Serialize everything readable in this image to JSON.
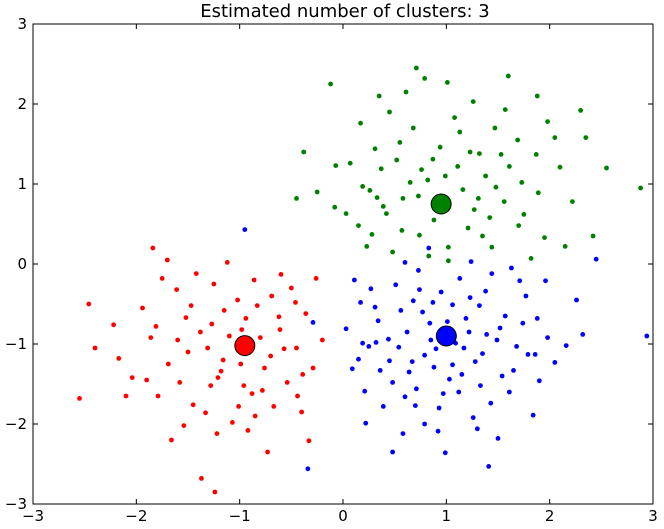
{
  "chart_data": {
    "type": "scatter",
    "title": "Estimated number of clusters: 3",
    "xlabel": "",
    "ylabel": "",
    "xlim": [
      -3,
      3
    ],
    "ylim": [
      -3,
      3
    ],
    "xticks": [
      -3,
      -2,
      -1,
      0,
      1,
      2,
      3
    ],
    "yticks": [
      -3,
      -2,
      -1,
      0,
      1,
      2,
      3
    ],
    "xtick_labels": [
      "−3",
      "−2",
      "−1",
      "0",
      "1",
      "2",
      "3"
    ],
    "ytick_labels": [
      "−3",
      "−2",
      "−1",
      "0",
      "1",
      "2",
      "3"
    ],
    "grid": false,
    "series": [
      {
        "color": "#0000ff",
        "center": [
          1.0,
          -0.9
        ],
        "points": [
          [
            0.32,
            -0.98
          ],
          [
            1.06,
            -0.51
          ],
          [
            0.84,
            -0.74
          ],
          [
            1.22,
            -0.85
          ],
          [
            0.79,
            -1.14
          ],
          [
            1.28,
            -1.22
          ],
          [
            0.56,
            -0.58
          ],
          [
            1.49,
            -0.95
          ],
          [
            0.97,
            -1.62
          ],
          [
            0.68,
            -0.46
          ],
          [
            1.32,
            -0.52
          ],
          [
            0.15,
            -1.19
          ],
          [
            0.48,
            -1.48
          ],
          [
            1.74,
            -0.74
          ],
          [
            1.15,
            -1.38
          ],
          [
            0.62,
            -0.85
          ],
          [
            0.95,
            -0.35
          ],
          [
            1.65,
            -1.33
          ],
          [
            0.31,
            -0.54
          ],
          [
            1.86,
            -1.13
          ],
          [
            0.7,
            -1.77
          ],
          [
            0.21,
            -1.59
          ],
          [
            1.43,
            -1.74
          ],
          [
            0.88,
            -1.29
          ],
          [
            1.09,
            -0.99
          ],
          [
            0.45,
            -1.21
          ],
          [
            1.57,
            -0.65
          ],
          [
            0.27,
            -0.31
          ],
          [
            1.13,
            -0.18
          ],
          [
            0.73,
            -0.08
          ],
          [
            1.98,
            -0.92
          ],
          [
            0.64,
            -1.35
          ],
          [
            1.38,
            -0.34
          ],
          [
            0.03,
            -0.81
          ],
          [
            0.58,
            -2.12
          ],
          [
            1.26,
            -1.92
          ],
          [
            0.92,
            -2.09
          ],
          [
            1.68,
            -1.03
          ],
          [
            1.9,
            -1.46
          ],
          [
            0.39,
            -1.78
          ],
          [
            1.5,
            -2.18
          ],
          [
            0.85,
            -0.95
          ],
          [
            1.03,
            -1.44
          ],
          [
            0.17,
            -0.48
          ],
          [
            1.77,
            -0.4
          ],
          [
            0.51,
            -0.26
          ],
          [
            2.16,
            -1.02
          ],
          [
            1.35,
            -1.12
          ],
          [
            0.22,
            -1.99
          ],
          [
            0.77,
            -0.6
          ],
          [
            1.19,
            -0.68
          ],
          [
            1.61,
            -1.6
          ],
          [
            0.99,
            -2.36
          ],
          [
            0.34,
            -0.71
          ],
          [
            1.44,
            -0.12
          ],
          [
            0.09,
            -1.31
          ],
          [
            0.6,
            0.02
          ],
          [
            0.83,
            0.2
          ],
          [
            1.71,
            -0.21
          ],
          [
            2.05,
            -1.23
          ],
          [
            2.32,
            -0.88
          ],
          [
            1.3,
            -2.06
          ],
          [
            0.44,
            -0.94
          ],
          [
            0.93,
            -1.8
          ],
          [
            1.12,
            -1.6
          ],
          [
            1.84,
            -1.89
          ],
          [
            0.11,
            -0.2
          ],
          [
            0.71,
            -1.56
          ],
          [
            1.54,
            -1.4
          ],
          [
            1.24,
            0.03
          ],
          [
            0.48,
            -2.35
          ],
          [
            1.01,
            -0.72
          ],
          [
            0.25,
            -1.03
          ],
          [
            1.88,
            -0.68
          ],
          [
            0.67,
            -1.22
          ],
          [
            1.39,
            -0.88
          ],
          [
            0.54,
            -1.04
          ],
          [
            0.79,
            -2.0
          ],
          [
            1.96,
            -0.21
          ],
          [
            2.26,
            -0.45
          ],
          [
            1.63,
            -0.05
          ],
          [
            2.45,
            0.06
          ],
          [
            2.94,
            -0.9
          ],
          [
            -0.34,
            -2.56
          ],
          [
            -0.95,
            0.43
          ],
          [
            -0.29,
            -0.73
          ],
          [
            1.41,
            -2.53
          ],
          [
            0.87,
            -0.48
          ],
          [
            1.17,
            -1.05
          ],
          [
            0.36,
            -1.33
          ],
          [
            1.52,
            -0.8
          ],
          [
            0.74,
            -0.32
          ],
          [
            1.06,
            -1.26
          ],
          [
            0.6,
            -1.66
          ],
          [
            1.33,
            -1.52
          ],
          [
            0.19,
            -0.99
          ],
          [
            1.79,
            -1.13
          ],
          [
            0.9,
            -1.06
          ],
          [
            1.23,
            -0.42
          ]
        ]
      },
      {
        "color": "#ff0000",
        "center": [
          -0.95,
          -1.02
        ],
        "points": [
          [
            -1.02,
            -0.45
          ],
          [
            -0.61,
            -0.82
          ],
          [
            -1.31,
            -1.05
          ],
          [
            -0.76,
            -1.3
          ],
          [
            -1.52,
            -0.67
          ],
          [
            -0.88,
            -1.62
          ],
          [
            -1.18,
            -1.34
          ],
          [
            -0.45,
            -1.05
          ],
          [
            -1.69,
            -1.25
          ],
          [
            -0.94,
            -0.68
          ],
          [
            -1.45,
            -1.76
          ],
          [
            -0.69,
            -0.4
          ],
          [
            -1.86,
            -0.92
          ],
          [
            -1.07,
            -1.98
          ],
          [
            -0.54,
            -1.48
          ],
          [
            -1.25,
            -0.25
          ],
          [
            -2.04,
            -1.42
          ],
          [
            -0.8,
            -0.92
          ],
          [
            -1.61,
            -0.32
          ],
          [
            -0.36,
            -0.62
          ],
          [
            -1.38,
            -0.85
          ],
          [
            -0.99,
            -1.25
          ],
          [
            -0.67,
            -1.78
          ],
          [
            -1.79,
            -1.65
          ],
          [
            -0.29,
            -1.3
          ],
          [
            -1.15,
            -0.58
          ],
          [
            -2.22,
            -0.76
          ],
          [
            -0.92,
            -2.08
          ],
          [
            -1.54,
            -2.02
          ],
          [
            -0.6,
            -0.13
          ],
          [
            -1.75,
            -0.18
          ],
          [
            -0.4,
            -1.85
          ],
          [
            -1.28,
            -1.52
          ],
          [
            -2.17,
            -1.18
          ],
          [
            -0.83,
            -0.52
          ],
          [
            -1.1,
            -0.9
          ],
          [
            -0.5,
            -0.3
          ],
          [
            -1.94,
            -0.55
          ],
          [
            -0.73,
            -2.35
          ],
          [
            -1.42,
            -0.12
          ],
          [
            -0.2,
            -0.95
          ],
          [
            -1.66,
            -2.2
          ],
          [
            -1.22,
            -2.12
          ],
          [
            -0.96,
            -1.52
          ],
          [
            -0.33,
            -2.21
          ],
          [
            -2.4,
            -1.05
          ],
          [
            -1.84,
            0.2
          ],
          [
            -1.5,
            -1.1
          ],
          [
            -0.7,
            -1.15
          ],
          [
            -1.01,
            -1.78
          ],
          [
            -0.57,
            -1.06
          ],
          [
            -1.33,
            -1.86
          ],
          [
            -1.9,
            -1.45
          ],
          [
            -0.26,
            -0.18
          ],
          [
            -1.12,
            0.02
          ],
          [
            -2.55,
            -1.68
          ],
          [
            -2.46,
            -0.5
          ],
          [
            -1.7,
            0.05
          ],
          [
            -0.86,
            -0.2
          ],
          [
            -1.37,
            -2.68
          ],
          [
            -1.24,
            -2.85
          ],
          [
            -0.44,
            -1.65
          ],
          [
            -1.58,
            -1.48
          ],
          [
            -0.78,
            -1.58
          ],
          [
            -2.1,
            -1.65
          ],
          [
            -1.16,
            -1.2
          ],
          [
            -0.62,
            -0.66
          ],
          [
            -1.47,
            -0.52
          ],
          [
            -0.85,
            -1.9
          ],
          [
            -1.27,
            -0.75
          ],
          [
            -0.39,
            -1.38
          ],
          [
            -1.81,
            -0.78
          ],
          [
            -0.98,
            -0.82
          ],
          [
            -1.6,
            -0.95
          ],
          [
            -0.46,
            -0.48
          ],
          [
            -0.93,
            -1.07
          ],
          [
            -1.21,
            -1.42
          ]
        ]
      },
      {
        "color": "#008000",
        "center": [
          0.95,
          0.75
        ],
        "points": [
          [
            0.65,
            1.02
          ],
          [
            1.21,
            0.45
          ],
          [
            0.42,
            0.63
          ],
          [
            1.48,
            0.96
          ],
          [
            0.87,
            1.31
          ],
          [
            0.26,
            0.92
          ],
          [
            1.02,
            0.21
          ],
          [
            1.75,
            0.62
          ],
          [
            0.55,
            1.52
          ],
          [
            1.32,
            1.38
          ],
          [
            0.15,
            0.48
          ],
          [
            1.61,
            1.22
          ],
          [
            0.96,
            0.75
          ],
          [
            0.37,
            1.19
          ],
          [
            1.89,
            0.89
          ],
          [
            0.74,
            0.36
          ],
          [
            1.13,
            1.65
          ],
          [
            0.07,
            1.26
          ],
          [
            1.44,
            0.21
          ],
          [
            0.58,
            0.82
          ],
          [
            1.69,
            1.55
          ],
          [
            0.31,
            1.44
          ],
          [
            1.95,
            0.33
          ],
          [
            0.82,
            1.05
          ],
          [
            1.27,
            0.68
          ],
          [
            0.48,
            0.15
          ],
          [
            1.56,
            0.78
          ],
          [
            0.19,
            0.97
          ],
          [
            1.08,
            1.83
          ],
          [
            0.68,
            1.7
          ],
          [
            1.38,
            1.1
          ],
          [
            0.03,
            0.63
          ],
          [
            2.1,
            1.21
          ],
          [
            0.88,
            0.55
          ],
          [
            1.82,
            0.07
          ],
          [
            1.16,
            0.93
          ],
          [
            0.52,
            1.3
          ],
          [
            1.47,
            1.7
          ],
          [
            0.23,
            0.22
          ],
          [
            1.73,
            1.02
          ],
          [
            0.94,
            1.46
          ],
          [
            0.39,
            0.72
          ],
          [
            2.22,
            0.78
          ],
          [
            0.61,
            2.15
          ],
          [
            1.26,
            2.03
          ],
          [
            0.79,
            2.32
          ],
          [
            -0.07,
            1.23
          ],
          [
            -0.25,
            0.9
          ],
          [
            -0.08,
            0.71
          ],
          [
            2.05,
            1.58
          ],
          [
            2.35,
            1.58
          ],
          [
            2.55,
            1.2
          ],
          [
            2.88,
            0.95
          ],
          [
            2.42,
            0.35
          ],
          [
            2.15,
            0.22
          ],
          [
            -0.38,
            1.4
          ],
          [
            -0.45,
            0.82
          ],
          [
            -0.12,
            2.25
          ],
          [
            0.35,
            2.1
          ],
          [
            0.71,
            2.45
          ],
          [
            1.88,
            2.1
          ],
          [
            1.6,
            2.35
          ],
          [
            1.01,
            2.27
          ],
          [
            1.35,
            0.35
          ],
          [
            0.83,
            0.1
          ],
          [
            1.11,
            1.22
          ],
          [
            0.45,
            1.9
          ],
          [
            1.57,
            1.93
          ],
          [
            0.17,
            1.76
          ],
          [
            1.98,
            1.78
          ],
          [
            2.3,
            1.92
          ],
          [
            0.57,
            0.42
          ],
          [
            1.23,
            1.4
          ],
          [
            0.28,
            0.37
          ],
          [
            1.7,
            0.48
          ],
          [
            1.02,
            0.04
          ],
          [
            0.73,
            0.85
          ],
          [
            1.42,
            0.58
          ],
          [
            0.99,
            1.1
          ],
          [
            1.53,
            1.37
          ],
          [
            0.33,
            0.83
          ],
          [
            1.31,
            0.82
          ],
          [
            0.76,
            1.18
          ],
          [
            1.87,
            1.37
          ]
        ]
      }
    ]
  }
}
